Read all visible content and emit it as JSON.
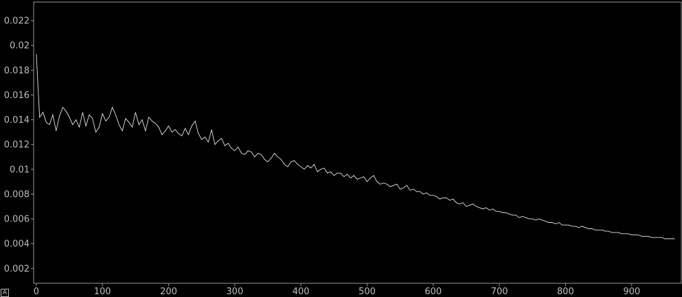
{
  "plot": {
    "autoscale_label": "A",
    "background_color": "#000000",
    "axis_color": "#9a9a9a",
    "tick_label_color": "#bdbdbd",
    "line_color": "#e6e6e6"
  },
  "chart_data": {
    "type": "line",
    "title": "",
    "xlabel": "",
    "ylabel": "",
    "xlim": [
      -4,
      975
    ],
    "ylim": [
      0.0008,
      0.0235
    ],
    "grid": false,
    "x_ticks": [
      0,
      100,
      200,
      300,
      400,
      500,
      600,
      700,
      800,
      900
    ],
    "x_tick_labels": [
      "0",
      "100",
      "200",
      "300",
      "400",
      "500",
      "600",
      "700",
      "800",
      "900"
    ],
    "y_ticks": [
      0.002,
      0.004,
      0.006,
      0.008,
      0.01,
      0.012,
      0.014,
      0.016,
      0.018,
      0.02,
      0.022
    ],
    "y_tick_labels": [
      "0.002",
      "0.004",
      "0.006",
      "0.008",
      "0.01",
      "0.012",
      "0.014",
      "0.016",
      "0.018",
      "0.02",
      "0.022"
    ],
    "series": [
      {
        "x_start": 0,
        "x_step": 5,
        "values": [
          0.0193,
          0.0142,
          0.0146,
          0.0138,
          0.0136,
          0.0144,
          0.0131,
          0.0143,
          0.015,
          0.0147,
          0.0142,
          0.0136,
          0.014,
          0.0134,
          0.0146,
          0.0135,
          0.0144,
          0.0141,
          0.013,
          0.0134,
          0.0145,
          0.0139,
          0.0142,
          0.015,
          0.0144,
          0.0136,
          0.0131,
          0.0141,
          0.0138,
          0.0134,
          0.0146,
          0.0136,
          0.014,
          0.0131,
          0.0142,
          0.0139,
          0.0137,
          0.0134,
          0.0128,
          0.0131,
          0.0135,
          0.013,
          0.0132,
          0.0129,
          0.0127,
          0.0133,
          0.0128,
          0.0135,
          0.0139,
          0.0129,
          0.0124,
          0.0126,
          0.0122,
          0.0132,
          0.012,
          0.0123,
          0.0125,
          0.0119,
          0.0121,
          0.0117,
          0.0115,
          0.0118,
          0.0113,
          0.0112,
          0.0115,
          0.0114,
          0.011,
          0.0113,
          0.0112,
          0.0108,
          0.0106,
          0.0109,
          0.0113,
          0.011,
          0.0108,
          0.0104,
          0.0102,
          0.0106,
          0.0107,
          0.0104,
          0.0102,
          0.01,
          0.0103,
          0.0101,
          0.0104,
          0.0098,
          0.01,
          0.0101,
          0.0097,
          0.0098,
          0.0095,
          0.0097,
          0.0097,
          0.0094,
          0.0096,
          0.0093,
          0.0095,
          0.0092,
          0.0093,
          0.0094,
          0.009,
          0.0093,
          0.0095,
          0.009,
          0.0088,
          0.0089,
          0.0088,
          0.0086,
          0.0087,
          0.0088,
          0.0084,
          0.0085,
          0.0087,
          0.0083,
          0.0084,
          0.0082,
          0.0082,
          0.008,
          0.0081,
          0.0079,
          0.0079,
          0.0078,
          0.0076,
          0.0077,
          0.0077,
          0.0075,
          0.0076,
          0.0073,
          0.0072,
          0.0073,
          0.007,
          0.0071,
          0.0072,
          0.007,
          0.0069,
          0.0068,
          0.0069,
          0.0067,
          0.0068,
          0.0066,
          0.0066,
          0.0065,
          0.0065,
          0.0064,
          0.0063,
          0.0063,
          0.0061,
          0.0062,
          0.0061,
          0.006,
          0.006,
          0.0059,
          0.006,
          0.0059,
          0.0058,
          0.0057,
          0.0057,
          0.0056,
          0.0057,
          0.0055,
          0.0055,
          0.0055,
          0.0054,
          0.0054,
          0.0053,
          0.0054,
          0.0053,
          0.0052,
          0.0052,
          0.0051,
          0.0051,
          0.0051,
          0.005,
          0.005,
          0.0049,
          0.0049,
          0.0049,
          0.0048,
          0.0048,
          0.0048,
          0.0047,
          0.0047,
          0.0047,
          0.0046,
          0.0046,
          0.0046,
          0.0045,
          0.0045,
          0.0045,
          0.0045,
          0.0044,
          0.0044,
          0.0044,
          0.0044
        ]
      }
    ]
  }
}
